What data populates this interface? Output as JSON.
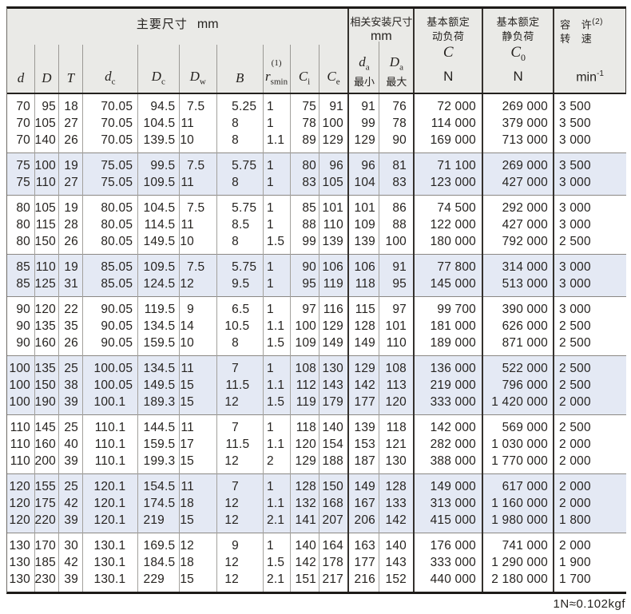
{
  "table": {
    "header": {
      "main": {
        "label": "主要尺寸",
        "unit": "mm"
      },
      "install": {
        "label": "相关安装尺寸",
        "unit": "mm"
      },
      "dynamic_load": {
        "line1": "基本额定",
        "line2": "动负荷",
        "symbol": "C",
        "symbol_sub": "",
        "unit": "N"
      },
      "static_load": {
        "line1": "基本额定",
        "line2": "静负荷",
        "symbol": "C",
        "symbol_sub": "0",
        "unit": "N"
      },
      "speed": {
        "line1": "容 许",
        "line1_sup": "(2)",
        "line2": "转 速",
        "unit_base": "min",
        "unit_sup": "-1"
      }
    },
    "columns": [
      {
        "key": "d",
        "base": "d"
      },
      {
        "key": "D",
        "base": "D"
      },
      {
        "key": "T",
        "base": "T"
      },
      {
        "key": "dc",
        "base": "d",
        "sub": "c"
      },
      {
        "key": "Dc",
        "base": "D",
        "sub": "c"
      },
      {
        "key": "Dw",
        "base": "D",
        "sub": "w"
      },
      {
        "key": "B",
        "base": "B"
      },
      {
        "key": "rsmin",
        "base": "r",
        "sub": "smin",
        "sup": "(1)"
      },
      {
        "key": "Ci",
        "base": "C",
        "sub": "i"
      },
      {
        "key": "Ce",
        "base": "C",
        "sub": "e"
      },
      {
        "key": "da",
        "base": "d",
        "sub": "a",
        "label": "最小"
      },
      {
        "key": "Da",
        "base": "D",
        "sub": "a",
        "label": "最大"
      },
      {
        "key": "C"
      },
      {
        "key": "C0"
      },
      {
        "key": "n"
      }
    ],
    "row_groups": [
      {
        "shaded": false,
        "rows": [
          [
            "70",
            "95",
            "18",
            "70.05",
            "94.5",
            "7.5",
            "5.25",
            "1",
            "75",
            "91",
            "91",
            "76",
            "72 000",
            "269 000",
            "3 500"
          ],
          [
            "70",
            "105",
            "27",
            "70.05",
            "104.5",
            "11",
            "8",
            "1",
            "78",
            "100",
            "99",
            "78",
            "114 000",
            "379 000",
            "3 500"
          ],
          [
            "70",
            "140",
            "26",
            "70.05",
            "139.5",
            "10",
            "8",
            "1.1",
            "89",
            "129",
            "129",
            "90",
            "169 000",
            "713 000",
            "3 000"
          ]
        ]
      },
      {
        "shaded": true,
        "rows": [
          [
            "75",
            "100",
            "19",
            "75.05",
            "99.5",
            "7.5",
            "5.75",
            "1",
            "80",
            "96",
            "96",
            "81",
            "71 100",
            "269 000",
            "3 500"
          ],
          [
            "75",
            "110",
            "27",
            "75.05",
            "109.5",
            "11",
            "8",
            "1",
            "83",
            "105",
            "104",
            "83",
            "123 000",
            "427 000",
            "3 000"
          ]
        ]
      },
      {
        "shaded": false,
        "rows": [
          [
            "80",
            "105",
            "19",
            "80.05",
            "104.5",
            "7.5",
            "5.75",
            "1",
            "85",
            "101",
            "101",
            "86",
            "74 500",
            "292 000",
            "3 000"
          ],
          [
            "80",
            "115",
            "28",
            "80.05",
            "114.5",
            "11",
            "8.5",
            "1",
            "88",
            "110",
            "109",
            "88",
            "122 000",
            "427 000",
            "3 000"
          ],
          [
            "80",
            "150",
            "26",
            "80.05",
            "149.5",
            "10",
            "8",
            "1.5",
            "99",
            "139",
            "139",
            "100",
            "180 000",
            "792 000",
            "2 500"
          ]
        ]
      },
      {
        "shaded": true,
        "rows": [
          [
            "85",
            "110",
            "19",
            "85.05",
            "109.5",
            "7.5",
            "5.75",
            "1",
            "90",
            "106",
            "106",
            "91",
            "77 800",
            "314 000",
            "3 000"
          ],
          [
            "85",
            "125",
            "31",
            "85.05",
            "124.5",
            "12",
            "9.5",
            "1",
            "95",
            "119",
            "118",
            "95",
            "145 000",
            "513 000",
            "3 000"
          ]
        ]
      },
      {
        "shaded": false,
        "rows": [
          [
            "90",
            "120",
            "22",
            "90.05",
            "119.5",
            "9",
            "6.5",
            "1",
            "97",
            "116",
            "115",
            "97",
            "99 700",
            "390 000",
            "3 000"
          ],
          [
            "90",
            "135",
            "35",
            "90.05",
            "134.5",
            "14",
            "10.5",
            "1.1",
            "100",
            "129",
            "128",
            "101",
            "181 000",
            "626 000",
            "2 500"
          ],
          [
            "90",
            "160",
            "26",
            "90.05",
            "159.5",
            "10",
            "8",
            "1.5",
            "109",
            "149",
            "149",
            "110",
            "189 000",
            "871 000",
            "2 500"
          ]
        ]
      },
      {
        "shaded": true,
        "rows": [
          [
            "100",
            "135",
            "25",
            "100.05",
            "134.5",
            "11",
            "7",
            "1",
            "108",
            "130",
            "129",
            "108",
            "136 000",
            "522 000",
            "2 500"
          ],
          [
            "100",
            "150",
            "38",
            "100.05",
            "149.5",
            "15",
            "11.5",
            "1.1",
            "112",
            "143",
            "142",
            "113",
            "219 000",
            "796 000",
            "2 500"
          ],
          [
            "100",
            "190",
            "39",
            "100.1",
            "189.3",
            "15",
            "12",
            "1.5",
            "119",
            "179",
            "177",
            "120",
            "333 000",
            "1 420 000",
            "2 000"
          ]
        ]
      },
      {
        "shaded": false,
        "rows": [
          [
            "110",
            "145",
            "25",
            "110.1",
            "144.5",
            "11",
            "7",
            "1",
            "118",
            "140",
            "139",
            "118",
            "142 000",
            "569 000",
            "2 500"
          ],
          [
            "110",
            "160",
            "40",
            "110.1",
            "159.5",
            "17",
            "11.5",
            "1.1",
            "120",
            "154",
            "153",
            "121",
            "282 000",
            "1 030 000",
            "2 000"
          ],
          [
            "110",
            "200",
            "39",
            "110.1",
            "199.3",
            "15",
            "12",
            "2",
            "129",
            "188",
            "187",
            "130",
            "388 000",
            "1 770 000",
            "2 000"
          ]
        ]
      },
      {
        "shaded": true,
        "rows": [
          [
            "120",
            "155",
            "25",
            "120.1",
            "154.5",
            "11",
            "7",
            "1",
            "128",
            "150",
            "149",
            "128",
            "149 000",
            "617 000",
            "2 000"
          ],
          [
            "120",
            "175",
            "42",
            "120.1",
            "174.5",
            "18",
            "12",
            "1.1",
            "132",
            "168",
            "167",
            "133",
            "313 000",
            "1 160 000",
            "2 000"
          ],
          [
            "120",
            "220",
            "39",
            "120.1",
            "219",
            "15",
            "12",
            "2.1",
            "141",
            "207",
            "206",
            "142",
            "415 000",
            "1 980 000",
            "1 800"
          ]
        ]
      },
      {
        "shaded": false,
        "rows": [
          [
            "130",
            "170",
            "30",
            "130.1",
            "169.5",
            "12",
            "9",
            "1",
            "140",
            "164",
            "163",
            "140",
            "176 000",
            "741 000",
            "2 000"
          ],
          [
            "130",
            "185",
            "42",
            "130.1",
            "184.5",
            "18",
            "12",
            "1.5",
            "142",
            "178",
            "177",
            "143",
            "333 000",
            "1 290 000",
            "1 900"
          ],
          [
            "130",
            "230",
            "39",
            "130.1",
            "229",
            "15",
            "12",
            "2.1",
            "151",
            "217",
            "216",
            "152",
            "440 000",
            "2 180 000",
            "1 700"
          ]
        ]
      }
    ],
    "footnote": "1N≈0.102kgf"
  }
}
